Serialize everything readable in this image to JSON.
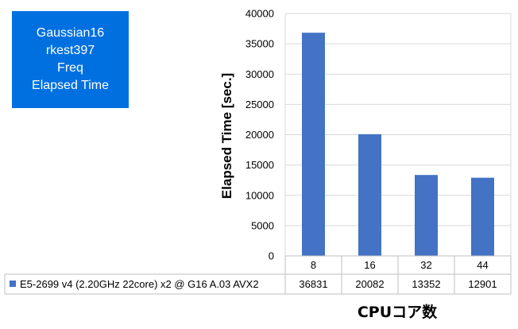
{
  "info_box": {
    "lines": [
      "Gaussian16",
      "rkest397",
      "Freq",
      "Elapsed Time"
    ],
    "color": "#0070e0"
  },
  "chart_data": {
    "type": "bar",
    "categories": [
      "8",
      "16",
      "32",
      "44"
    ],
    "series": [
      {
        "name": "E5-2699 v4 (2.20GHz 22core) x2 @ G16 A.03 AVX2",
        "values": [
          36831,
          20082,
          13352,
          12901
        ],
        "color": "#4472c4"
      }
    ],
    "ylabel": "Elapsed Time [sec.]",
    "xlabel": "CPUコア数",
    "ylim": [
      0,
      40000
    ],
    "yticks": [
      0,
      5000,
      10000,
      15000,
      20000,
      25000,
      30000,
      35000,
      40000
    ],
    "grid": true,
    "legend": "data-table"
  }
}
